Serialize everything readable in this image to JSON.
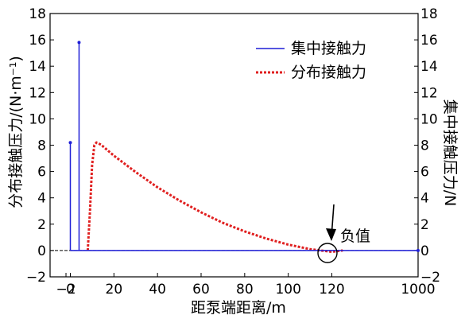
{
  "chart_data": {
    "type": "line",
    "xlabel": "距泵端距离/m",
    "ylabel_left": "分布接触压力/(N·m⁻¹)",
    "ylabel_right": "集中接触压力/N",
    "x_ticks": [
      "−2",
      "0",
      "20",
      "40",
      "60",
      "80",
      "100",
      "120",
      "1000"
    ],
    "y_ticks_left": [
      "18",
      "16",
      "14",
      "12",
      "10",
      "8",
      "6",
      "4",
      "2",
      "0",
      "−2"
    ],
    "y_ticks_right": [
      "18",
      "16",
      "14",
      "12",
      "10",
      "8",
      "6",
      "4",
      "2",
      "0",
      "−2"
    ],
    "ylim": [
      -2,
      18
    ],
    "grid": false,
    "legend_position": "top-right",
    "series": [
      {
        "name": "集中接触力",
        "style": "solid",
        "color": "#1f1fd6",
        "points": [
          [
            0,
            8.2
          ],
          [
            4,
            15.8
          ]
        ]
      },
      {
        "name": "分布接触力",
        "style": "dotted",
        "color": "#e02020",
        "points": [
          [
            8,
            0
          ],
          [
            9,
            3
          ],
          [
            10,
            6.5
          ],
          [
            11,
            8
          ],
          [
            12,
            8.2
          ],
          [
            14,
            8.05
          ],
          [
            20,
            7.2
          ],
          [
            30,
            5.95
          ],
          [
            40,
            4.8
          ],
          [
            50,
            3.8
          ],
          [
            60,
            2.9
          ],
          [
            70,
            2.1
          ],
          [
            80,
            1.45
          ],
          [
            90,
            0.9
          ],
          [
            100,
            0.45
          ],
          [
            110,
            0.1
          ],
          [
            115,
            0
          ],
          [
            120,
            -0.1
          ],
          [
            125,
            0
          ]
        ]
      }
    ],
    "annotations": [
      {
        "text": "负值",
        "x": 120,
        "y": 0
      }
    ]
  }
}
